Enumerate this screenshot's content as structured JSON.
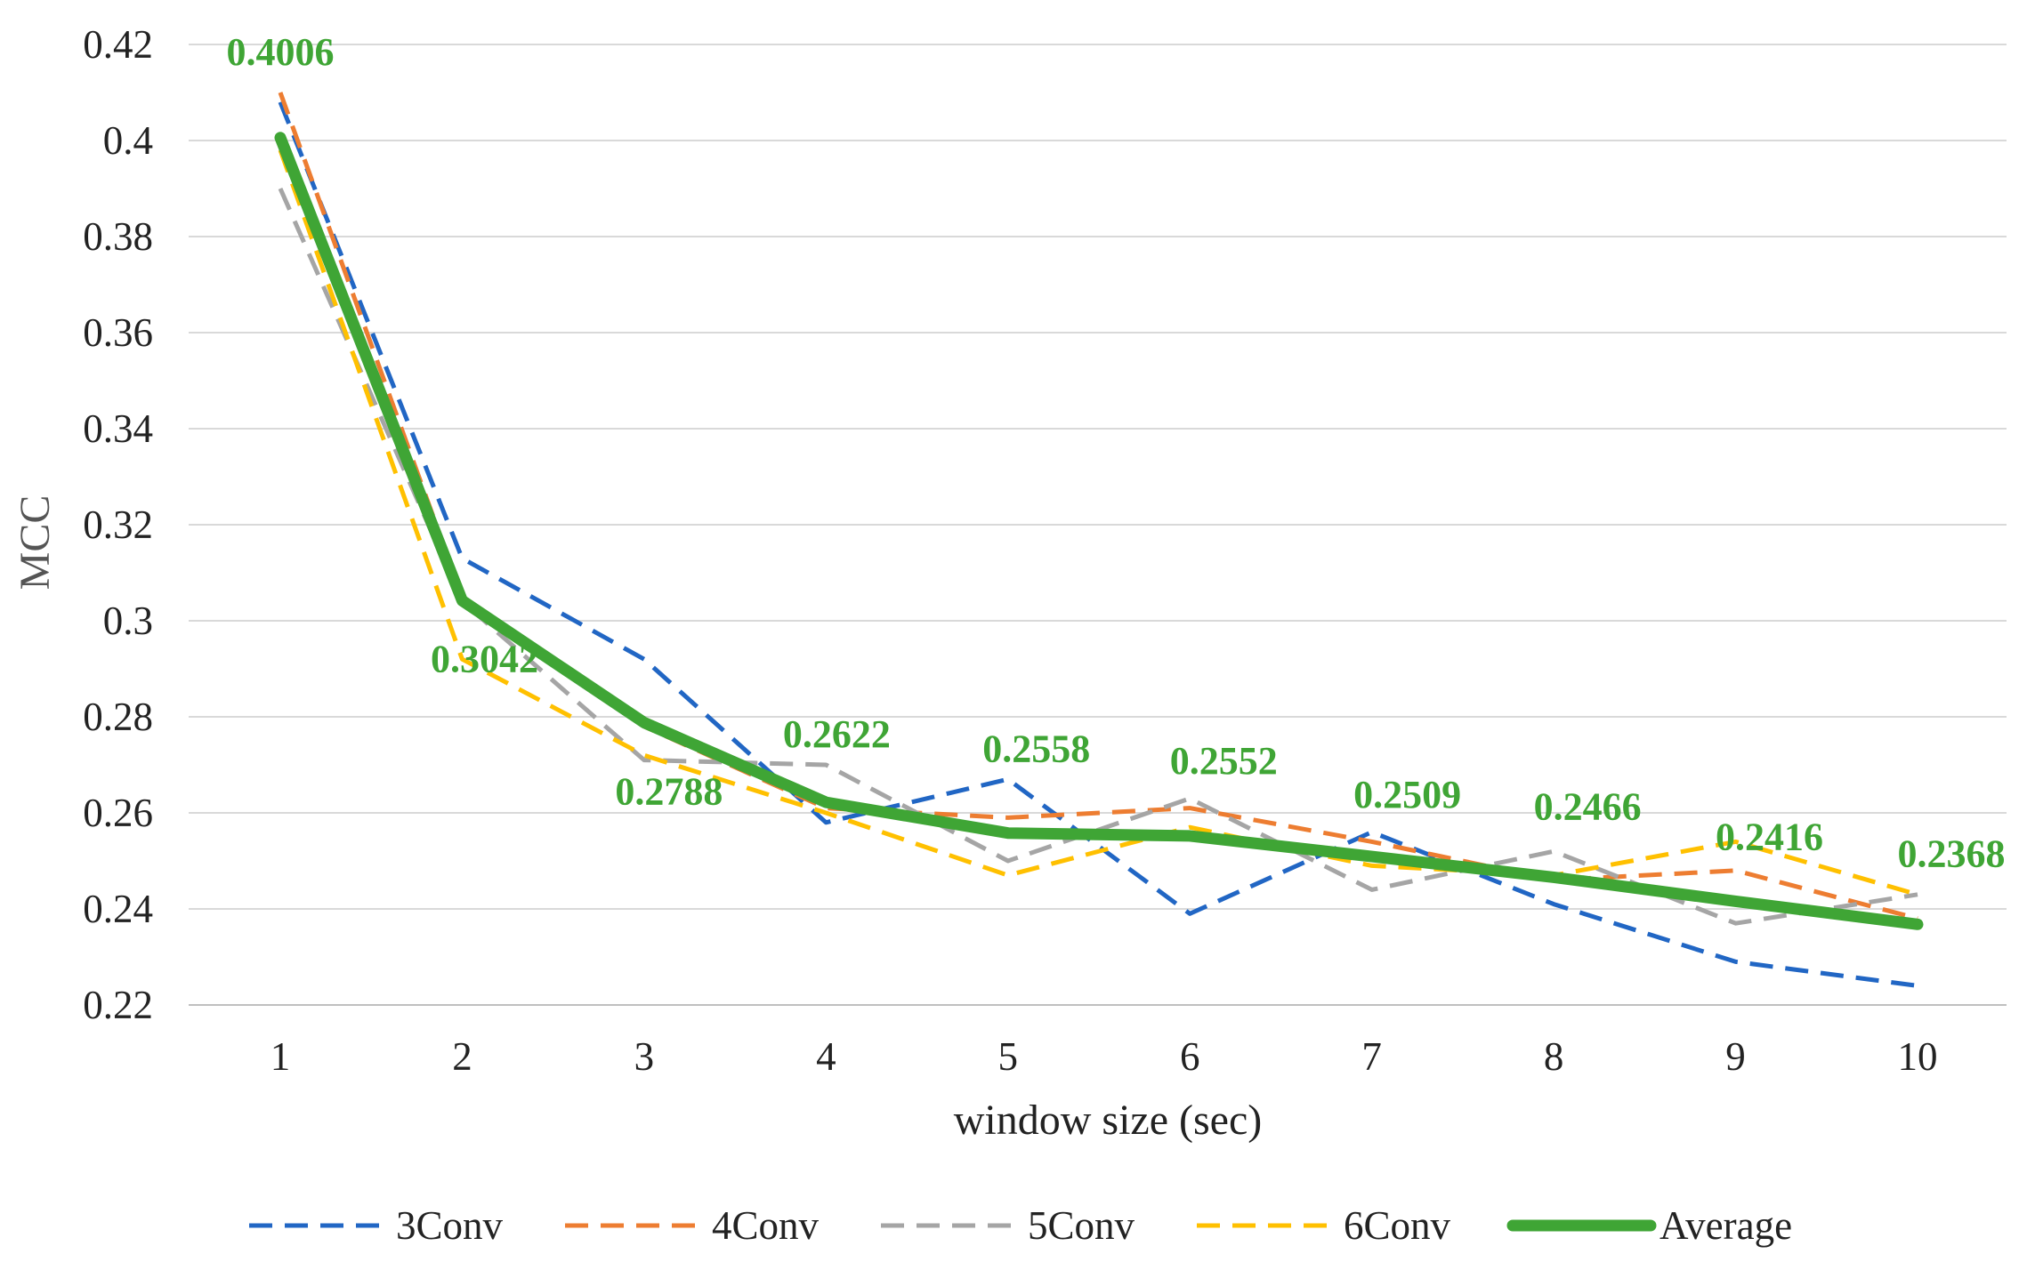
{
  "chart_data": {
    "type": "line",
    "title": "",
    "xlabel": "window size (sec)",
    "ylabel": "MCC",
    "x": [
      1,
      2,
      3,
      4,
      5,
      6,
      7,
      8,
      9,
      10
    ],
    "ylim": [
      0.22,
      0.42
    ],
    "yticks": [
      "0.22",
      "0.24",
      "0.26",
      "0.28",
      "0.3",
      "0.32",
      "0.34",
      "0.36",
      "0.38",
      "0.4",
      "0.42"
    ],
    "xticks": [
      "1",
      "2",
      "3",
      "4",
      "5",
      "6",
      "7",
      "8",
      "9",
      "10"
    ],
    "grid": true,
    "legend_position": "bottom",
    "series": [
      {
        "name": "3Conv",
        "color": "#2166c4",
        "style": "dashed",
        "values": [
          0.408,
          0.313,
          0.292,
          0.258,
          0.267,
          0.239,
          0.256,
          0.241,
          0.229,
          0.224
        ]
      },
      {
        "name": "4Conv",
        "color": "#ed7d31",
        "style": "dashed",
        "values": [
          0.41,
          0.305,
          0.278,
          0.261,
          0.259,
          0.261,
          0.254,
          0.246,
          0.248,
          0.238
        ]
      },
      {
        "name": "5Conv",
        "color": "#a5a5a5",
        "style": "dashed",
        "values": [
          0.39,
          0.304,
          0.271,
          0.27,
          0.25,
          0.263,
          0.244,
          0.252,
          0.237,
          0.243
        ]
      },
      {
        "name": "6Conv",
        "color": "#ffc000",
        "style": "dashed",
        "values": [
          0.398,
          0.292,
          0.272,
          0.26,
          0.247,
          0.257,
          0.249,
          0.247,
          0.254,
          0.243
        ]
      },
      {
        "name": "Average",
        "color": "#3fa535",
        "style": "solid",
        "values": [
          0.4006,
          0.3042,
          0.2788,
          0.2622,
          0.2558,
          0.2552,
          0.2509,
          0.2466,
          0.2416,
          0.2368
        ],
        "data_labels": [
          "0.4006",
          "0.3042",
          "0.2788",
          "0.2622",
          "0.2558",
          "0.2552",
          "0.2509",
          "0.2466",
          "0.2416",
          "0.2368"
        ]
      }
    ]
  }
}
